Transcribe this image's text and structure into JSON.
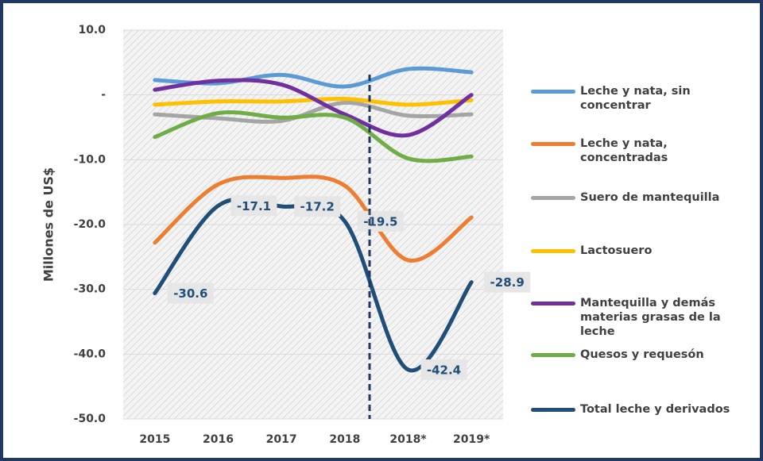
{
  "chart_data": {
    "type": "line",
    "y_label": "Millones de US$",
    "categories": [
      "2015",
      "2016",
      "2017",
      "2018",
      "2018*",
      "2019*"
    ],
    "ylim": [
      -50,
      10
    ],
    "yticks": [
      {
        "value": -50,
        "label": "-50.0"
      },
      {
        "value": -40,
        "label": "-40.0"
      },
      {
        "value": -30,
        "label": "-30.0"
      },
      {
        "value": -20,
        "label": "-20.0"
      },
      {
        "value": -10,
        "label": "-10.0"
      },
      {
        "value": 0,
        "label": "-"
      },
      {
        "value": 10,
        "label": "10.0"
      }
    ],
    "grid": true,
    "legend": "right",
    "series": [
      {
        "name": "Leche y nata, sin concentrar",
        "color": "#5b9bd5",
        "values": [
          2.3,
          1.8,
          3.1,
          1.3,
          4.0,
          3.5
        ]
      },
      {
        "name": "Leche y nata, concentradas",
        "color": "#ed7d31",
        "values": [
          -22.8,
          -13.8,
          -12.8,
          -14.0,
          -25.5,
          -18.9
        ]
      },
      {
        "name": "Suero de mantequilla",
        "color": "#a5a5a5",
        "values": [
          -3.0,
          -3.6,
          -4.0,
          -1.2,
          -3.2,
          -3.0
        ]
      },
      {
        "name": "Lactosuero",
        "color": "#ffc000",
        "values": [
          -1.5,
          -1.0,
          -1.0,
          -0.6,
          -1.5,
          -0.8
        ]
      },
      {
        "name": "Mantequilla y  demás materias grasas de la leche",
        "color": "#7030a0",
        "values": [
          0.8,
          2.2,
          1.6,
          -3.0,
          -6.2,
          0.0
        ]
      },
      {
        "name": "Quesos y requesón",
        "color": "#70ad47",
        "values": [
          -6.5,
          -2.8,
          -3.5,
          -3.5,
          -9.8,
          -9.5
        ]
      },
      {
        "name": "Total leche y derivados",
        "color": "#1f4e79",
        "values": [
          -30.6,
          -17.1,
          -17.2,
          -19.5,
          -42.4,
          -28.9
        ],
        "data_labels": true
      }
    ]
  }
}
